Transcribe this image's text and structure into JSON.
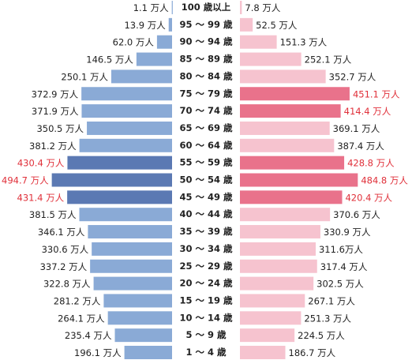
{
  "chart_data": {
    "type": "pyramid",
    "categories": [
      "100 歳以上",
      "95 ～ 99 歳",
      "90 ～ 94 歳",
      "85 ～ 89 歳",
      "80 ～ 84 歳",
      "75 ～ 79 歳",
      "70 ～ 74 歳",
      "65 ～ 69 歳",
      "60 ～ 64 歳",
      "55 ～ 59 歳",
      "50 ～ 54 歳",
      "45 ～ 49 歳",
      "40 ～ 44 歳",
      "35 ～ 39 歳",
      "30 ～ 34 歳",
      "25 ～ 29 歳",
      "20 ～ 24 歳",
      "15 ～ 19 歳",
      "10 ～ 14 歳",
      "5 ～ 9 歳",
      "1 ～ 4 歳"
    ],
    "series": [
      {
        "side": "left",
        "values": [
          1.1,
          13.9,
          62.0,
          146.5,
          250.1,
          372.9,
          371.9,
          350.5,
          381.2,
          430.4,
          494.7,
          431.4,
          381.5,
          346.1,
          330.6,
          337.2,
          322.8,
          281.2,
          264.1,
          235.4,
          196.1
        ],
        "value_labels": [
          "1.1 万人",
          "13.9 万人",
          "62.0 万人",
          "146.5 万人",
          "250.1 万人",
          "372.9 万人",
          "371.9 万人",
          "350.5 万人",
          "381.2 万人",
          "430.4 万人",
          "494.7 万人",
          "431.4 万人",
          "381.5 万人",
          "346.1 万人",
          "330.6 万人",
          "337.2 万人",
          "322.8 万人",
          "281.2 万人",
          "264.1 万人",
          "235.4 万人",
          "196.1 万人"
        ],
        "colors": [
          "#8aaad6",
          "#8aaad6",
          "#8aaad6",
          "#8aaad6",
          "#8aaad6",
          "#8aaad6",
          "#8aaad6",
          "#8aaad6",
          "#8aaad6",
          "#5b79b3",
          "#5b79b3",
          "#5b79b3",
          "#8aaad6",
          "#8aaad6",
          "#8aaad6",
          "#8aaad6",
          "#8aaad6",
          "#8aaad6",
          "#8aaad6",
          "#8aaad6",
          "#8aaad6"
        ],
        "label_colors": [
          "#222",
          "#222",
          "#222",
          "#222",
          "#222",
          "#222",
          "#222",
          "#222",
          "#222",
          "#e0303a",
          "#e0303a",
          "#e0303a",
          "#222",
          "#222",
          "#222",
          "#222",
          "#222",
          "#222",
          "#222",
          "#222",
          "#222"
        ]
      },
      {
        "side": "right",
        "values": [
          7.8,
          52.5,
          151.3,
          252.1,
          352.7,
          451.1,
          414.4,
          369.1,
          387.4,
          428.8,
          484.8,
          420.4,
          370.6,
          330.9,
          311.6,
          317.4,
          302.5,
          267.1,
          251.3,
          224.5,
          186.7
        ],
        "value_labels": [
          "7.8 万人",
          "52.5 万人",
          "151.3 万人",
          "252.1 万人",
          "352.7 万人",
          "451.1 万人",
          "414.4 万人",
          "369.1 万人",
          "387.4 万人",
          "428.8 万人",
          "484.8 万人",
          "420.4 万人",
          "370.6 万人",
          "330.9 万人",
          "311.6万人",
          "317.4 万人",
          "302.5 万人",
          "267.1 万人",
          "251.3 万人",
          "224.5 万人",
          "186.7 万人"
        ],
        "colors": [
          "#f6c3cf",
          "#f6c3cf",
          "#f6c3cf",
          "#f6c3cf",
          "#f6c3cf",
          "#e9728b",
          "#e9728b",
          "#f6c3cf",
          "#f6c3cf",
          "#e9728b",
          "#e9728b",
          "#e9728b",
          "#f6c3cf",
          "#f6c3cf",
          "#f6c3cf",
          "#f6c3cf",
          "#f6c3cf",
          "#f6c3cf",
          "#f6c3cf",
          "#f6c3cf",
          "#f6c3cf"
        ],
        "label_colors": [
          "#222",
          "#222",
          "#222",
          "#222",
          "#222",
          "#e0303a",
          "#e0303a",
          "#222",
          "#222",
          "#e0303a",
          "#e0303a",
          "#e0303a",
          "#222",
          "#222",
          "#222",
          "#222",
          "#222",
          "#222",
          "#222",
          "#222",
          "#222"
        ]
      }
    ]
  }
}
